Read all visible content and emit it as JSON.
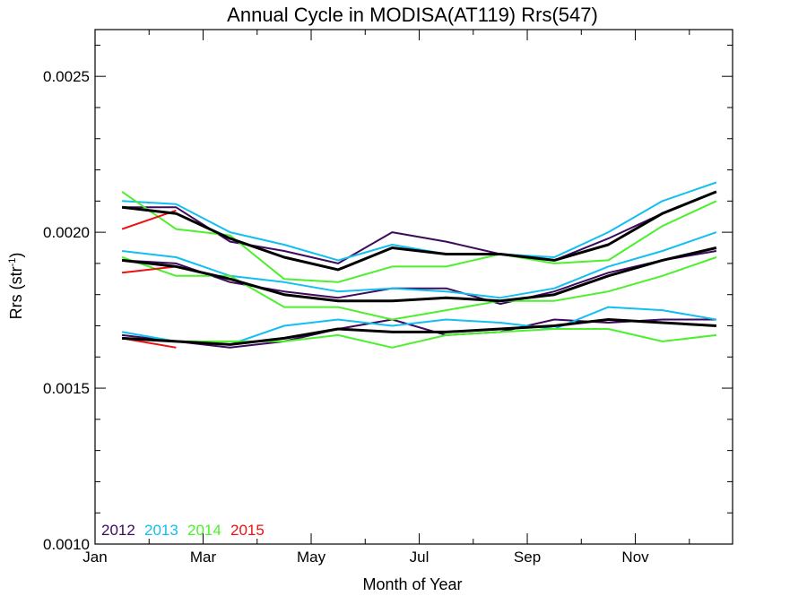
{
  "chart_data": {
    "type": "line",
    "title": "Annual Cycle in MODISA(AT119) Rrs(547)",
    "xlabel": "Month of Year",
    "ylabel_main": "Rrs (str",
    "ylabel_sup": "-1",
    "ylabel_tail": ")",
    "xlim": [
      1,
      12.8
    ],
    "ylim": [
      0.001,
      0.00265
    ],
    "x_ticks": [
      {
        "value": 1,
        "label": "Jan"
      },
      {
        "value": 3,
        "label": "Mar"
      },
      {
        "value": 5,
        "label": "May"
      },
      {
        "value": 7,
        "label": "Jul"
      },
      {
        "value": 9,
        "label": "Sep"
      },
      {
        "value": 11,
        "label": "Nov"
      }
    ],
    "x_minor_ticks": [
      2,
      4,
      6,
      8,
      10,
      12
    ],
    "y_ticks": [
      {
        "value": 0.001,
        "label": "0.0010"
      },
      {
        "value": 0.0015,
        "label": "0.0015"
      },
      {
        "value": 0.002,
        "label": "0.0020"
      },
      {
        "value": 0.0025,
        "label": "0.0025"
      }
    ],
    "y_minor_ticks": [
      0.0011,
      0.0012,
      0.0013,
      0.0014,
      0.0016,
      0.0017,
      0.0018,
      0.0019,
      0.0021,
      0.0022,
      0.0023,
      0.0024,
      0.0026
    ],
    "legend": [
      {
        "label": "2012",
        "color": "#3d0a5c"
      },
      {
        "label": "2013",
        "color": "#13bff0"
      },
      {
        "label": "2014",
        "color": "#4cf02c"
      },
      {
        "label": "2015",
        "color": "#ee1111"
      }
    ],
    "series": [
      {
        "year": "2012",
        "band": "upper",
        "color": "#3d0a5c",
        "x": [
          1.5,
          2.5,
          3.5,
          4.5,
          5.5,
          6.5,
          7.5,
          8.5,
          9.5,
          10.5,
          11.5,
          12.5
        ],
        "y": [
          0.00208,
          0.00208,
          0.00197,
          0.00194,
          0.0019,
          0.002,
          0.00197,
          0.00193,
          0.00191,
          0.00198,
          0.00206,
          0.00213
        ]
      },
      {
        "year": "2012",
        "band": "middle",
        "color": "#3d0a5c",
        "x": [
          1.5,
          2.5,
          3.5,
          4.5,
          5.5,
          6.5,
          7.5,
          8.5,
          9.5,
          10.5,
          11.5,
          12.5
        ],
        "y": [
          0.00191,
          0.0019,
          0.00184,
          0.00181,
          0.00179,
          0.00182,
          0.00182,
          0.00177,
          0.00181,
          0.00187,
          0.00191,
          0.00194
        ]
      },
      {
        "year": "2012",
        "band": "lower",
        "color": "#3d0a5c",
        "x": [
          1.5,
          2.5,
          3.5,
          4.5,
          5.5,
          6.5,
          7.5,
          8.5,
          9.5,
          10.5,
          11.5,
          12.5
        ],
        "y": [
          0.00167,
          0.00165,
          0.00163,
          0.00165,
          0.00169,
          0.00172,
          0.00167,
          0.00168,
          0.00172,
          0.00171,
          0.00172,
          0.00172
        ]
      },
      {
        "year": "2013",
        "band": "upper",
        "color": "#13bff0",
        "x": [
          1.5,
          2.5,
          3.5,
          4.5,
          5.5,
          6.5,
          7.5,
          8.5,
          9.5,
          10.5,
          11.5,
          12.5
        ],
        "y": [
          0.0021,
          0.00209,
          0.002,
          0.00196,
          0.00191,
          0.00196,
          0.00193,
          0.00193,
          0.00192,
          0.002,
          0.0021,
          0.00216
        ]
      },
      {
        "year": "2013",
        "band": "middle",
        "color": "#13bff0",
        "x": [
          1.5,
          2.5,
          3.5,
          4.5,
          5.5,
          6.5,
          7.5,
          8.5,
          9.5,
          10.5,
          11.5,
          12.5
        ],
        "y": [
          0.00194,
          0.00192,
          0.00186,
          0.00184,
          0.00181,
          0.00182,
          0.00181,
          0.00179,
          0.00182,
          0.00189,
          0.00194,
          0.002
        ]
      },
      {
        "year": "2013",
        "band": "lower",
        "color": "#13bff0",
        "x": [
          1.5,
          2.5,
          3.5,
          4.5,
          5.5,
          6.5,
          7.5,
          8.5,
          9.5,
          10.5,
          11.5,
          12.5
        ],
        "y": [
          0.00168,
          0.00165,
          0.00164,
          0.0017,
          0.00172,
          0.0017,
          0.00172,
          0.00171,
          0.00169,
          0.00176,
          0.00175,
          0.00172
        ]
      },
      {
        "year": "2014",
        "band": "upper",
        "color": "#4cf02c",
        "x": [
          1.5,
          2.5,
          3.5,
          4.5,
          5.5,
          6.5,
          7.5,
          8.5,
          9.5,
          10.5,
          11.5,
          12.5
        ],
        "y": [
          0.00213,
          0.00201,
          0.00199,
          0.00185,
          0.00184,
          0.00189,
          0.00189,
          0.00193,
          0.0019,
          0.00191,
          0.00202,
          0.0021
        ]
      },
      {
        "year": "2014",
        "band": "middle",
        "color": "#4cf02c",
        "x": [
          1.5,
          2.5,
          3.5,
          4.5,
          5.5,
          6.5,
          7.5,
          8.5,
          9.5,
          10.5,
          11.5,
          12.5
        ],
        "y": [
          0.00192,
          0.00186,
          0.00186,
          0.00176,
          0.00176,
          0.00172,
          0.00175,
          0.00178,
          0.00178,
          0.00181,
          0.00186,
          0.00192
        ]
      },
      {
        "year": "2014",
        "band": "lower",
        "color": "#4cf02c",
        "x": [
          1.5,
          2.5,
          3.5,
          4.5,
          5.5,
          6.5,
          7.5,
          8.5,
          9.5,
          10.5,
          11.5,
          12.5
        ],
        "y": [
          0.00166,
          0.00165,
          0.00165,
          0.00165,
          0.00167,
          0.00163,
          0.00167,
          0.00168,
          0.00169,
          0.00169,
          0.00165,
          0.00167
        ]
      },
      {
        "year": "2015",
        "band": "upper",
        "color": "#ee1111",
        "x": [
          1.5,
          2.5
        ],
        "y": [
          0.00201,
          0.00207
        ]
      },
      {
        "year": "2015",
        "band": "middle",
        "color": "#ee1111",
        "x": [
          1.5,
          2.5
        ],
        "y": [
          0.00187,
          0.00189
        ]
      },
      {
        "year": "2015",
        "band": "lower",
        "color": "#ee1111",
        "x": [
          1.5,
          2.5
        ],
        "y": [
          0.00166,
          0.00163
        ]
      },
      {
        "year": "climatology",
        "band": "upper",
        "color": "#000000",
        "x": [
          1.5,
          2.5,
          3.5,
          4.5,
          5.5,
          6.5,
          7.5,
          8.5,
          9.5,
          10.5,
          11.5,
          12.5
        ],
        "y": [
          0.00208,
          0.00206,
          0.00198,
          0.00192,
          0.00188,
          0.00195,
          0.00193,
          0.00193,
          0.00191,
          0.00196,
          0.00206,
          0.00213
        ]
      },
      {
        "year": "climatology",
        "band": "middle",
        "color": "#000000",
        "x": [
          1.5,
          2.5,
          3.5,
          4.5,
          5.5,
          6.5,
          7.5,
          8.5,
          9.5,
          10.5,
          11.5,
          12.5
        ],
        "y": [
          0.00191,
          0.00189,
          0.00185,
          0.0018,
          0.00178,
          0.00178,
          0.00179,
          0.00178,
          0.0018,
          0.00186,
          0.00191,
          0.00195
        ]
      },
      {
        "year": "climatology",
        "band": "lower",
        "color": "#000000",
        "x": [
          1.5,
          2.5,
          3.5,
          4.5,
          5.5,
          6.5,
          7.5,
          8.5,
          9.5,
          10.5,
          11.5,
          12.5
        ],
        "y": [
          0.00166,
          0.00165,
          0.00164,
          0.00166,
          0.00169,
          0.00168,
          0.00168,
          0.00169,
          0.0017,
          0.00172,
          0.00171,
          0.0017
        ]
      }
    ]
  }
}
